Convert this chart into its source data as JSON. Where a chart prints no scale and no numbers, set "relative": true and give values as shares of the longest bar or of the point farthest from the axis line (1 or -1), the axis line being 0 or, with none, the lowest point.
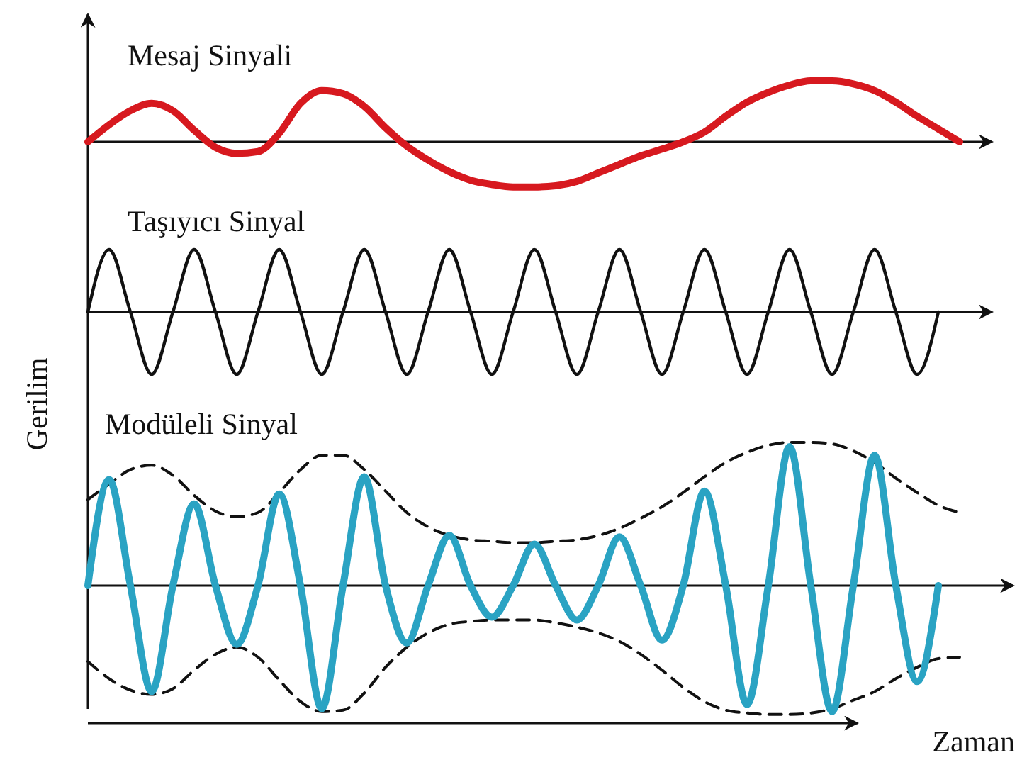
{
  "chart_data": [
    {
      "type": "line",
      "title": "Mesaj Sinyali",
      "relative": true,
      "categories": [
        null,
        null,
        null,
        null,
        null,
        null,
        null,
        null,
        null,
        null,
        null,
        null,
        null,
        null,
        null,
        null,
        null,
        null,
        null,
        null,
        null,
        null,
        null,
        null,
        null,
        null,
        null,
        null,
        null,
        null,
        null,
        null,
        null,
        null,
        null,
        null,
        null,
        null,
        null,
        null,
        null,
        null,
        null
      ],
      "series": [
        {
          "color": "#d7191f",
          "values": [
            0,
            0.28,
            0.51,
            0.63,
            0.51,
            0.19,
            -0.09,
            -0.19,
            -0.16,
            0.14,
            0.63,
            0.84,
            0.79,
            0.58,
            0.23,
            -0.07,
            -0.3,
            -0.49,
            -0.63,
            -0.7,
            -0.74,
            -0.74,
            -0.72,
            -0.65,
            -0.51,
            -0.37,
            -0.23,
            -0.12,
            0,
            0.16,
            0.42,
            0.65,
            0.81,
            0.93,
            1,
            1,
            0.95,
            0.84,
            0.65,
            0.42,
            0.21,
            0,
            null
          ]
        }
      ]
    },
    {
      "type": "line",
      "title": "Taşıyıcı Sinyal",
      "ylabel": "Gerilim",
      "relative": true,
      "categories": [
        null,
        null,
        null,
        null,
        null,
        null,
        null,
        null,
        null,
        null,
        null,
        null,
        null,
        null,
        null,
        null,
        null,
        null,
        null,
        null,
        null,
        null,
        null,
        null,
        null,
        null,
        null,
        null,
        null,
        null,
        null,
        null,
        null,
        null,
        null,
        null,
        null,
        null,
        null,
        null,
        null,
        null,
        null
      ],
      "series": [
        {
          "color": "#111111",
          "values": [
            0,
            1,
            0,
            -1,
            0,
            1,
            0,
            -1,
            0,
            1,
            0,
            -1,
            0,
            1,
            0,
            -1,
            0,
            1,
            0,
            -1,
            0,
            1,
            0,
            -1,
            0,
            1,
            0,
            -1,
            0,
            1,
            0,
            -1,
            0,
            1,
            0,
            -1,
            0,
            1,
            0,
            -1,
            0,
            null,
            null
          ]
        }
      ]
    },
    {
      "type": "line",
      "title": "Modüleli Sinyal",
      "xlabel": "Zaman",
      "relative": true,
      "categories": [
        null,
        null,
        null,
        null,
        null,
        null,
        null,
        null,
        null,
        null,
        null,
        null,
        null,
        null,
        null,
        null,
        null,
        null,
        null,
        null,
        null,
        null,
        null,
        null,
        null,
        null,
        null,
        null,
        null,
        null,
        null,
        null,
        null,
        null,
        null,
        null,
        null,
        null,
        null,
        null,
        null,
        null,
        null
      ],
      "series": [
        {
          "color": "#111111",
          "line_style": "dashed",
          "values": [
            0.6,
            0.71,
            0.81,
            0.84,
            0.77,
            0.63,
            0.52,
            0.48,
            0.51,
            0.65,
            0.81,
            0.91,
            0.91,
            0.81,
            0.66,
            0.51,
            0.41,
            0.35,
            0.32,
            0.31,
            0.3,
            0.3,
            0.31,
            0.32,
            0.35,
            0.4,
            0.47,
            0.55,
            0.65,
            0.76,
            0.86,
            0.93,
            0.98,
            1,
            1,
            0.99,
            0.94,
            0.86,
            0.75,
            0.65,
            0.56,
            0.51,
            null
          ]
        },
        {
          "color": "#111111",
          "line_style": "dashed",
          "values": [
            -0.53,
            -0.65,
            -0.73,
            -0.76,
            -0.72,
            -0.59,
            -0.48,
            -0.43,
            -0.5,
            -0.66,
            -0.81,
            -0.88,
            -0.87,
            -0.75,
            -0.57,
            -0.43,
            -0.33,
            -0.27,
            -0.25,
            -0.24,
            -0.24,
            -0.24,
            -0.26,
            -0.29,
            -0.33,
            -0.39,
            -0.48,
            -0.59,
            -0.71,
            -0.81,
            -0.87,
            -0.89,
            -0.9,
            -0.9,
            -0.89,
            -0.86,
            -0.8,
            -0.74,
            -0.65,
            -0.57,
            -0.51,
            -0.5,
            null
          ]
        },
        {
          "color": "#2aa3c3",
          "values": [
            0,
            0.74,
            0,
            -0.74,
            0,
            0.57,
            0,
            -0.41,
            0,
            0.64,
            0,
            -0.86,
            0,
            0.76,
            0,
            -0.4,
            0,
            0.35,
            0,
            -0.22,
            0,
            0.29,
            0,
            -0.24,
            0,
            0.34,
            0,
            -0.38,
            0,
            0.66,
            0,
            -0.83,
            0,
            0.97,
            0,
            -0.88,
            0,
            0.91,
            0,
            -0.67,
            0,
            null,
            null
          ]
        }
      ]
    }
  ]
}
